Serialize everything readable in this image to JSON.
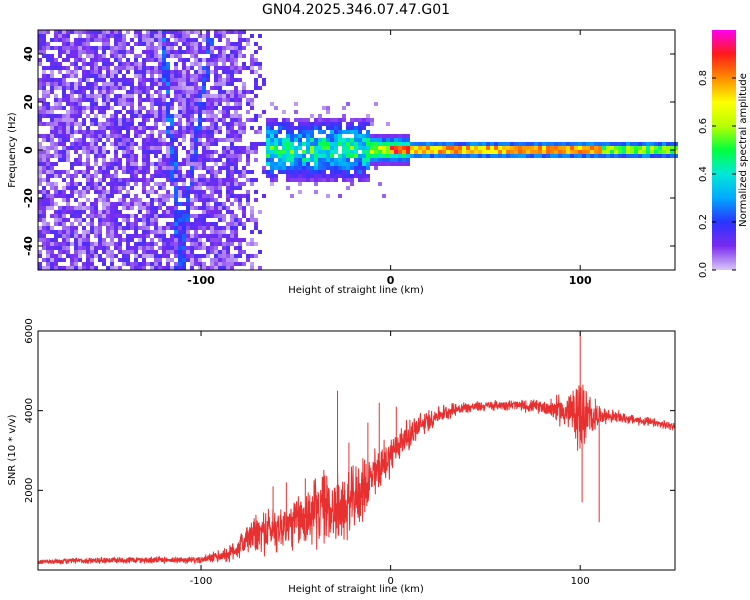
{
  "title": "GN04.2025.346.07.47.G01",
  "chart_data": [
    {
      "type": "heatmap",
      "name": "spectrogram",
      "xlabel": "Height of straight line (km)",
      "ylabel": "Frequency (Hz)",
      "xlim": [
        -186,
        150
      ],
      "ylim": [
        -50,
        50
      ],
      "xticks": [
        -100,
        0,
        100
      ],
      "yticks": [
        -40,
        -20,
        0,
        20,
        40
      ],
      "xtick_labels": [
        "-100",
        "0",
        "100"
      ],
      "ytick_labels": [
        "-40",
        "-20",
        "0",
        "20",
        "40"
      ],
      "colorbar": {
        "label": "Normalized spectral amplitude",
        "range": [
          0,
          1
        ],
        "ticks": [
          0.0,
          0.2,
          0.4,
          0.6,
          0.8
        ],
        "tick_labels": [
          "0.0",
          "0.2",
          "0.4",
          "0.6",
          "0.8"
        ],
        "colors": [
          "#d9c8f7",
          "#7a2bf0",
          "#2a35ff",
          "#00a8ff",
          "#00e8d8",
          "#00ff40",
          "#b8ff00",
          "#ffff00",
          "#ff8c00",
          "#ff1a1a",
          "#ff00ee"
        ]
      },
      "description_points": {
        "noise_region_x": [
          -186,
          -65
        ],
        "signal_start_x": -65,
        "signal_center_freq": 0,
        "streak_x_at_top": -120,
        "streak_x_at_bottom": -110
      }
    },
    {
      "type": "line",
      "name": "snr",
      "xlabel": "Height of straight line (km)",
      "ylabel": "SNR (10 * v/v)",
      "xlim": [
        -186,
        150
      ],
      "ylim": [
        0,
        6000
      ],
      "xticks": [
        -100,
        0,
        100
      ],
      "yticks": [
        2000,
        4000,
        6000
      ],
      "xtick_labels": [
        "-100",
        "0",
        "100"
      ],
      "ytick_labels": [
        "2000",
        "4000",
        "6000"
      ],
      "line_color": "#e83030",
      "envelope": {
        "x": [
          -186,
          -150,
          -100,
          -85,
          -75,
          -65,
          -55,
          -45,
          -35,
          -25,
          -15,
          -5,
          5,
          15,
          25,
          35,
          45,
          60,
          80,
          95,
          100,
          105,
          110,
          125,
          150
        ],
        "mid": [
          200,
          250,
          250,
          400,
          800,
          1000,
          1100,
          1300,
          1600,
          1500,
          2000,
          2600,
          3200,
          3600,
          3900,
          4050,
          4100,
          4150,
          4100,
          3950,
          3900,
          3800,
          3900,
          3800,
          3600
        ],
        "amp": [
          80,
          100,
          100,
          250,
          500,
          700,
          700,
          900,
          1100,
          1000,
          900,
          700,
          500,
          400,
          250,
          200,
          150,
          150,
          200,
          600,
          1200,
          700,
          250,
          150,
          120
        ]
      },
      "spikes": [
        {
          "x": -72,
          "y": 1300
        },
        {
          "x": -62,
          "y": 2100
        },
        {
          "x": -55,
          "y": 2200
        },
        {
          "x": -45,
          "y": 2300
        },
        {
          "x": -28,
          "y": 4500
        },
        {
          "x": -22,
          "y": 3200
        },
        {
          "x": -12,
          "y": 3700
        },
        {
          "x": -6,
          "y": 4200
        },
        {
          "x": 3,
          "y": 4100
        },
        {
          "x": 95,
          "y": 4400
        },
        {
          "x": 100,
          "y": 6000
        },
        {
          "x": 101,
          "y": 1700
        },
        {
          "x": 108,
          "y": 4300
        },
        {
          "x": 110,
          "y": 1200
        }
      ]
    }
  ]
}
